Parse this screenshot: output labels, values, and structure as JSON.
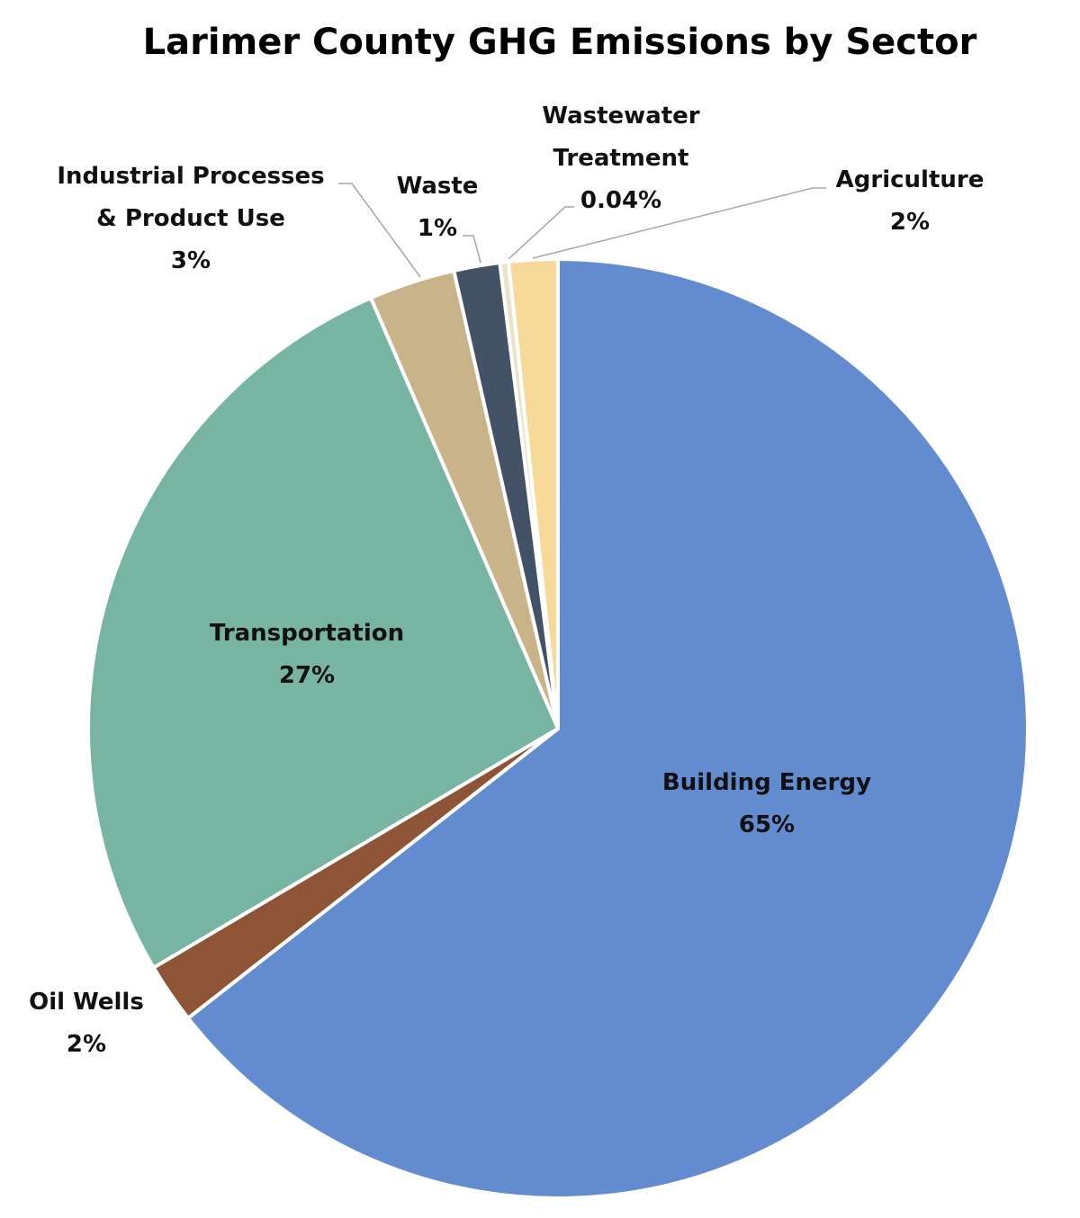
{
  "chart_data": {
    "type": "pie",
    "title": "Larimer County GHG Emissions by Sector",
    "slices": [
      {
        "name": "Building Energy",
        "value": 65,
        "label": "65%",
        "color": "#628ccf"
      },
      {
        "name": "Oil Wells",
        "value": 2,
        "label": "2%",
        "color": "#8e5436"
      },
      {
        "name": "Transportation",
        "value": 27,
        "label": "27%",
        "color": "#77b5a2"
      },
      {
        "name": "Industrial Processes & Product Use",
        "value": 3,
        "label": "3%",
        "color": "#c9b48a"
      },
      {
        "name": "Waste",
        "value": 1,
        "label": "1%",
        "color": "#445268"
      },
      {
        "name": "Wastewater Treatment",
        "value": 0.04,
        "label": "0.04%",
        "color": "#e8e3c9"
      },
      {
        "name": "Agriculture",
        "value": 2,
        "label": "2%",
        "color": "#f7d99a"
      }
    ]
  }
}
